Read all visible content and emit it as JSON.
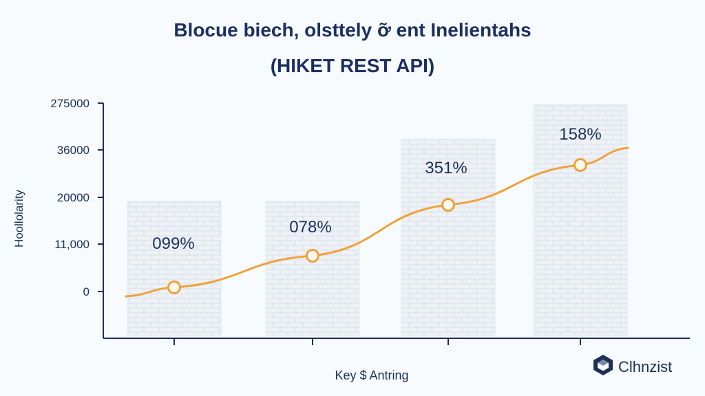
{
  "chart_data": {
    "type": "bar+line",
    "title": "Blocue biech, olsttely ỡ ent Inelientahs",
    "subtitle": "(HIKET REST API)",
    "ylabel": "Hoollolarity",
    "xlabel": "Key $ Antring",
    "y_ticks": [
      "0",
      "11,000",
      "20000",
      "36000",
      "275000"
    ],
    "categories": [
      "",
      "",
      "",
      ""
    ],
    "bar_heights_pct_of_axis": [
      0.58,
      0.58,
      0.85,
      1.0
    ],
    "line_values_pct_of_axis": [
      0.22,
      0.36,
      0.55,
      0.72
    ],
    "data_labels": [
      "099%",
      "078%",
      "351%",
      "158%"
    ],
    "colors": {
      "line": "#f0a13a",
      "bar_fill": "#eef1f5",
      "bar_brick": "#dfe4ea",
      "axis": "#1d2f5a",
      "text": "#1d2f5a"
    },
    "grid": false,
    "legend": "none"
  },
  "brand": {
    "icon": "cube-logo-icon",
    "text": "Clhnzist"
  }
}
